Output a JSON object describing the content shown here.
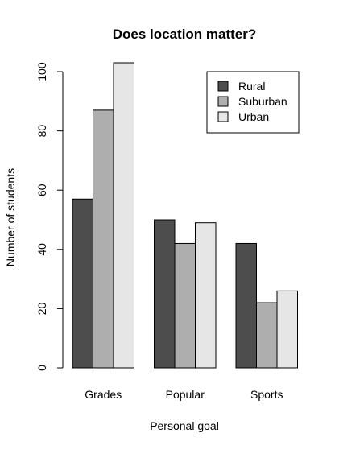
{
  "chart_data": {
    "type": "bar",
    "title": "Does location matter?",
    "xlabel": "Personal goal",
    "ylabel": "Number of students",
    "categories": [
      "Grades",
      "Popular",
      "Sports"
    ],
    "ylim": [
      0,
      103
    ],
    "yticks": [
      0,
      20,
      40,
      60,
      80,
      100
    ],
    "grid": false,
    "legend_position": "top-right",
    "series": [
      {
        "name": "Rural",
        "color": "#4d4d4d",
        "values": [
          57,
          50,
          42
        ]
      },
      {
        "name": "Suburban",
        "color": "#aeaeae",
        "values": [
          87,
          42,
          22
        ]
      },
      {
        "name": "Urban",
        "color": "#e6e6e6",
        "values": [
          103,
          49,
          26
        ]
      }
    ]
  }
}
